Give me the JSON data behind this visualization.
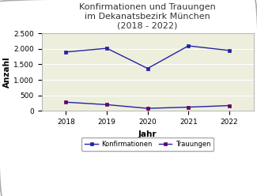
{
  "title": "Konfirmationen und Trauungen\nim Dekanatsbezirk München\n(2018 - 2022)",
  "xlabel": "Jahr",
  "ylabel": "Anzahl",
  "years": [
    2018,
    2019,
    2020,
    2021,
    2022
  ],
  "konfirmationen": [
    1900,
    2020,
    1370,
    2100,
    1950
  ],
  "trauungen": [
    280,
    200,
    80,
    120,
    170
  ],
  "line_color": "#2222aa",
  "marker_konfirmationen": "s",
  "marker_trauungen": "s",
  "marker_color_konfirmationen": "#2222aa",
  "marker_color_trauungen": "#660066",
  "ylim": [
    0,
    2500
  ],
  "yticks": [
    0,
    500,
    1000,
    1500,
    2000,
    2500
  ],
  "ytick_labels": [
    "0",
    "500",
    "1.000",
    "1.500",
    "2.000",
    "2.500"
  ],
  "fig_bg": "#ffffff",
  "plot_bg": "#eeeedd",
  "legend_konfirmationen": "Konfirmationen",
  "legend_trauungen": "Trauungen",
  "title_fontsize": 8.0,
  "axis_label_fontsize": 7.5,
  "tick_fontsize": 6.5,
  "legend_fontsize": 6.0
}
